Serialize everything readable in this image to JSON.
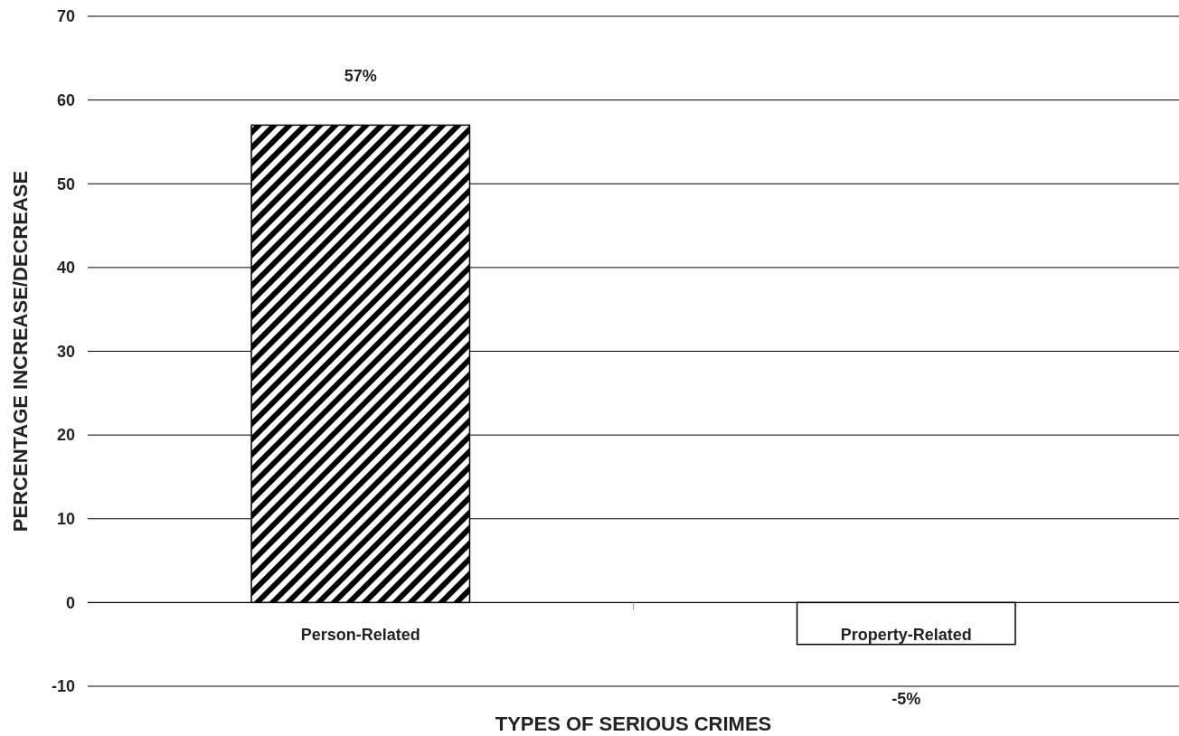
{
  "chart_data": {
    "type": "bar",
    "xlabel": "TYPES OF SERIOUS CRIMES",
    "ylabel": "PERCENTAGE INCREASE/DECREASE",
    "categories": [
      "Person-Related",
      "Property-Related"
    ],
    "values": [
      57,
      -5
    ],
    "colors": [
      "#000000",
      "#ffffff"
    ],
    "value_labels": [
      "57%",
      "-5%"
    ],
    "ylim": [
      -10,
      70
    ],
    "yticks": [
      -10,
      0,
      10,
      20,
      30,
      40,
      50,
      60,
      70
    ],
    "grid": "y"
  }
}
